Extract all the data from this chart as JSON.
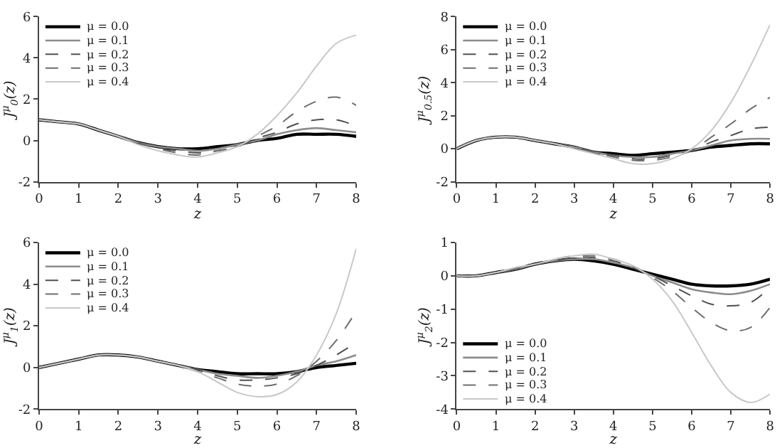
{
  "chart_data": [
    {
      "type": "line",
      "xlabel": "z",
      "ylabel": "J$^{μ}$$_{0}$(z)",
      "x": [
        0,
        0.5,
        1,
        1.5,
        2,
        2.5,
        3,
        3.5,
        4,
        4.5,
        5,
        5.5,
        6,
        6.5,
        7,
        7.5,
        8
      ],
      "xlim": [
        0,
        8
      ],
      "xticks": [
        0,
        1,
        2,
        3,
        4,
        5,
        6,
        7,
        8
      ],
      "ylim": [
        -2,
        6
      ],
      "yticks": [
        -2,
        0,
        2,
        4,
        6
      ],
      "legend": "top left",
      "marker": "none",
      "series": [
        {
          "name": "μ = 0.0",
          "color": "#000000",
          "line_style": "solid",
          "values": [
            1,
            0.9,
            0.8,
            0.5,
            0.2,
            -0.1,
            -0.3,
            -0.4,
            -0.4,
            -0.3,
            -0.2,
            0,
            0.1,
            0.3,
            0.3,
            0.3,
            0.2
          ]
        },
        {
          "name": "μ = 0.1",
          "color": "#8c8c8c",
          "line_style": "solid",
          "values": [
            1,
            0.9,
            0.8,
            0.5,
            0.2,
            -0.1,
            -0.3,
            -0.4,
            -0.5,
            -0.4,
            -0.2,
            0,
            0.3,
            0.5,
            0.6,
            0.5,
            0.4
          ]
        },
        {
          "name": "μ = 0.2",
          "color": "#505050",
          "line_style": "dashed",
          "values": [
            1,
            0.9,
            0.8,
            0.5,
            0.2,
            -0.1,
            -0.4,
            -0.5,
            -0.6,
            -0.5,
            -0.3,
            0.1,
            0.4,
            0.8,
            1.0,
            1.0,
            0.7
          ]
        },
        {
          "name": "μ = 0.3",
          "color": "#6e6e6e",
          "line_style": "dashed",
          "values": [
            1,
            0.9,
            0.8,
            0.5,
            0.2,
            -0.1,
            -0.4,
            -0.6,
            -0.7,
            -0.5,
            -0.3,
            0.2,
            0.7,
            1.4,
            1.9,
            2.1,
            1.7
          ]
        },
        {
          "name": "μ = 0.4",
          "color": "#c8c8c8",
          "line_style": "solid",
          "values": [
            1,
            0.9,
            0.8,
            0.5,
            0.2,
            -0.2,
            -0.5,
            -0.7,
            -0.8,
            -0.6,
            -0.3,
            0.3,
            1.2,
            2.3,
            3.6,
            4.7,
            5.1
          ]
        }
      ]
    },
    {
      "type": "line",
      "xlabel": "z",
      "ylabel": "J$^{μ}$$_{0.5}$(z)",
      "x": [
        0,
        0.5,
        1,
        1.5,
        2,
        2.5,
        3,
        3.5,
        4,
        4.5,
        5,
        5.5,
        6,
        6.5,
        7,
        7.5,
        8
      ],
      "xlim": [
        0,
        8
      ],
      "xticks": [
        0,
        1,
        2,
        3,
        4,
        5,
        6,
        7,
        8
      ],
      "ylim": [
        -2,
        8
      ],
      "yticks": [
        -2,
        0,
        2,
        4,
        6,
        8
      ],
      "legend": "top left",
      "marker": "none",
      "series": [
        {
          "name": "μ = 0.0",
          "color": "#000000",
          "line_style": "solid",
          "values": [
            0,
            0.5,
            0.7,
            0.7,
            0.5,
            0.3,
            0.1,
            -0.2,
            -0.3,
            -0.4,
            -0.3,
            -0.2,
            -0.1,
            0.1,
            0.2,
            0.3,
            0.3
          ]
        },
        {
          "name": "μ = 0.1",
          "color": "#8c8c8c",
          "line_style": "solid",
          "values": [
            0,
            0.5,
            0.7,
            0.7,
            0.5,
            0.3,
            0.1,
            -0.2,
            -0.4,
            -0.5,
            -0.5,
            -0.3,
            -0.1,
            0.2,
            0.5,
            0.6,
            0.6
          ]
        },
        {
          "name": "μ = 0.2",
          "color": "#505050",
          "line_style": "dashed",
          "values": [
            0,
            0.5,
            0.7,
            0.7,
            0.5,
            0.3,
            0.1,
            -0.2,
            -0.4,
            -0.6,
            -0.6,
            -0.4,
            -0.1,
            0.4,
            0.8,
            1.2,
            1.3
          ]
        },
        {
          "name": "μ = 0.3",
          "color": "#6e6e6e",
          "line_style": "dashed",
          "values": [
            0,
            0.5,
            0.7,
            0.7,
            0.5,
            0.3,
            0,
            -0.2,
            -0.5,
            -0.7,
            -0.7,
            -0.5,
            -0.1,
            0.7,
            1.5,
            2.4,
            3.1
          ]
        },
        {
          "name": "μ = 0.4",
          "color": "#c8c8c8",
          "line_style": "solid",
          "values": [
            0,
            0.5,
            0.7,
            0.7,
            0.5,
            0.3,
            0,
            -0.3,
            -0.6,
            -0.9,
            -0.9,
            -0.6,
            0,
            1.1,
            2.8,
            5.0,
            7.5
          ]
        }
      ]
    },
    {
      "type": "line",
      "xlabel": "z",
      "ylabel": "J$^{μ}$$_{1}$(z)",
      "x": [
        0,
        0.5,
        1,
        1.5,
        2,
        2.5,
        3,
        3.5,
        4,
        4.5,
        5,
        5.5,
        6,
        6.5,
        7,
        7.5,
        8
      ],
      "xlim": [
        0,
        8
      ],
      "xticks": [
        0,
        1,
        2,
        3,
        4,
        5,
        6,
        7,
        8
      ],
      "ylim": [
        -2,
        6
      ],
      "yticks": [
        -2,
        0,
        2,
        4,
        6
      ],
      "legend": "top left",
      "marker": "none",
      "series": [
        {
          "name": "μ = 0.0",
          "color": "#000000",
          "line_style": "solid",
          "values": [
            0,
            0.2,
            0.4,
            0.6,
            0.6,
            0.5,
            0.3,
            0.1,
            -0.1,
            -0.2,
            -0.3,
            -0.3,
            -0.3,
            -0.2,
            0,
            0.1,
            0.2
          ]
        },
        {
          "name": "μ = 0.1",
          "color": "#8c8c8c",
          "line_style": "solid",
          "values": [
            0,
            0.2,
            0.4,
            0.6,
            0.6,
            0.5,
            0.3,
            0.1,
            -0.1,
            -0.3,
            -0.4,
            -0.5,
            -0.4,
            -0.2,
            0.1,
            0.3,
            0.6
          ]
        },
        {
          "name": "μ = 0.2",
          "color": "#505050",
          "line_style": "dashed",
          "values": [
            0,
            0.2,
            0.4,
            0.6,
            0.6,
            0.5,
            0.3,
            0.1,
            -0.1,
            -0.4,
            -0.6,
            -0.6,
            -0.5,
            -0.3,
            0.1,
            0.6,
            1.2
          ]
        },
        {
          "name": "μ = 0.3",
          "color": "#6e6e6e",
          "line_style": "dashed",
          "values": [
            0,
            0.2,
            0.4,
            0.6,
            0.6,
            0.5,
            0.3,
            0.1,
            -0.2,
            -0.5,
            -0.8,
            -0.9,
            -0.8,
            -0.4,
            0.3,
            1.3,
            2.7
          ]
        },
        {
          "name": "μ = 0.4",
          "color": "#c8c8c8",
          "line_style": "solid",
          "values": [
            0,
            0.2,
            0.4,
            0.6,
            0.6,
            0.5,
            0.3,
            0.1,
            -0.2,
            -0.7,
            -1.2,
            -1.4,
            -1.3,
            -0.7,
            0.6,
            2.6,
            5.7
          ]
        }
      ]
    },
    {
      "type": "line",
      "xlabel": "z",
      "ylabel": "J$^{μ}$$_{2}$(z)",
      "x": [
        0,
        0.5,
        1,
        1.5,
        2,
        2.5,
        3,
        3.5,
        4,
        4.5,
        5,
        5.5,
        6,
        6.5,
        7,
        7.5,
        8
      ],
      "xlim": [
        0,
        8
      ],
      "xticks": [
        0,
        1,
        2,
        3,
        4,
        5,
        6,
        7,
        8
      ],
      "ylim": [
        -4,
        1
      ],
      "yticks": [
        -4,
        -3,
        -2,
        -1,
        0,
        1
      ],
      "legend": "bottom left",
      "marker": "none",
      "series": [
        {
          "name": "μ = 0.0",
          "color": "#000000",
          "line_style": "solid",
          "values": [
            0,
            0,
            0.1,
            0.2,
            0.35,
            0.45,
            0.5,
            0.45,
            0.35,
            0.2,
            0.05,
            -0.1,
            -0.25,
            -0.3,
            -0.3,
            -0.25,
            -0.1
          ]
        },
        {
          "name": "μ = 0.1",
          "color": "#8c8c8c",
          "line_style": "solid",
          "values": [
            0,
            0,
            0.1,
            0.2,
            0.35,
            0.45,
            0.5,
            0.5,
            0.4,
            0.25,
            0,
            -0.2,
            -0.4,
            -0.5,
            -0.55,
            -0.45,
            -0.25
          ]
        },
        {
          "name": "μ = 0.2",
          "color": "#505050",
          "line_style": "dashed",
          "values": [
            0,
            0,
            0.1,
            0.2,
            0.35,
            0.45,
            0.55,
            0.55,
            0.45,
            0.25,
            0,
            -0.3,
            -0.6,
            -0.85,
            -0.9,
            -0.8,
            -0.35
          ]
        },
        {
          "name": "μ = 0.3",
          "color": "#6e6e6e",
          "line_style": "dashed",
          "values": [
            0,
            0,
            0.1,
            0.2,
            0.35,
            0.5,
            0.6,
            0.6,
            0.5,
            0.3,
            -0.05,
            -0.45,
            -0.95,
            -1.4,
            -1.65,
            -1.55,
            -0.95
          ]
        },
        {
          "name": "μ = 0.4",
          "color": "#c8c8c8",
          "line_style": "solid",
          "values": [
            0,
            0,
            0.1,
            0.25,
            0.35,
            0.5,
            0.6,
            0.65,
            0.5,
            0.3,
            -0.1,
            -0.75,
            -1.7,
            -2.7,
            -3.5,
            -3.8,
            -3.55
          ]
        }
      ]
    }
  ]
}
